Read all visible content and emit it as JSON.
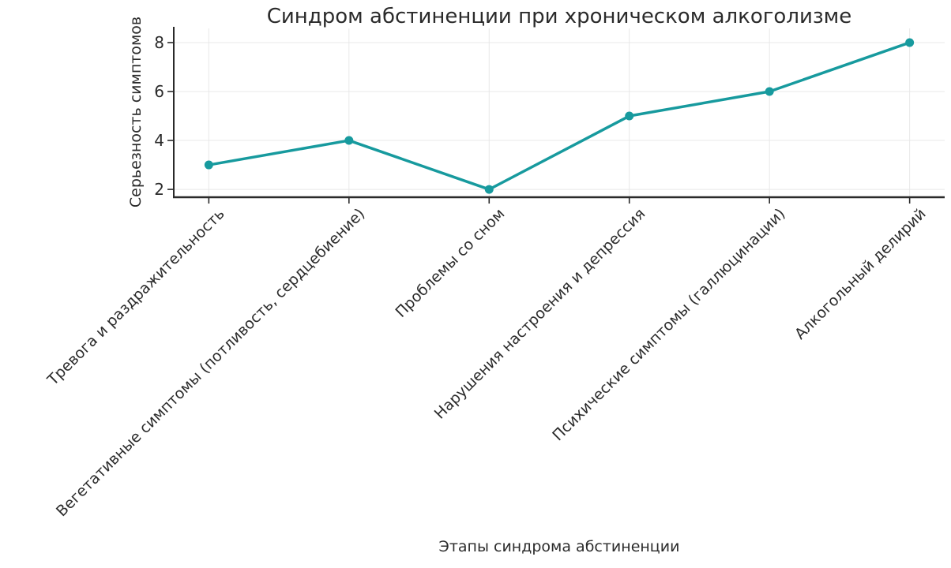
{
  "chart_data": {
    "type": "line",
    "title": "Синдром абстиненции при хроническом алкоголизме",
    "xlabel": "Этапы синдрома абстиненции",
    "ylabel": "Серьезность симптомов",
    "categories": [
      "Тревога и раздражительность",
      "Вегетативные симптомы (потливость, сердцебиение)",
      "Проблемы со сном",
      "Нарушения настроения и депрессия",
      "Психические симптомы (галлюцинации)",
      "Алкогольный делирий"
    ],
    "values": [
      3,
      4,
      2,
      5,
      6,
      8
    ],
    "yticks": [
      2,
      4,
      6,
      8
    ],
    "ylim": [
      1.68,
      8.58
    ],
    "xlim": [
      -0.25,
      5.25
    ],
    "grid": true,
    "legend_position": "none",
    "line_color": "#179a9e",
    "marker_color": "#179a9e",
    "grid_color": "#e8e8e8",
    "axis_color": "#2a2a2a",
    "text_color": "#2b2b2b",
    "background": "#ffffff"
  }
}
